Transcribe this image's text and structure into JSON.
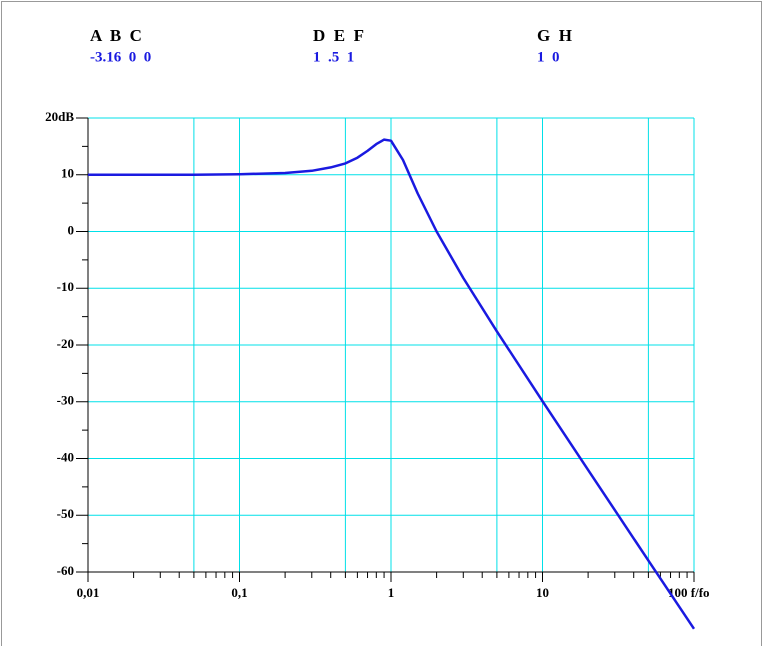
{
  "chart_data": {
    "type": "line",
    "parameters": [
      {
        "names": "A  B  C",
        "values": "-3.16  0  0"
      },
      {
        "names": "D  E  F",
        "values": "1  .5  1"
      },
      {
        "names": "G  H",
        "values": "1  0"
      }
    ],
    "x": [
      0.01,
      0.02,
      0.05,
      0.1,
      0.2,
      0.3,
      0.4,
      0.5,
      0.6,
      0.7,
      0.8,
      0.9,
      1,
      1.2,
      1.5,
      2,
      3,
      5,
      10,
      20,
      50,
      100
    ],
    "series": [
      {
        "color": "#1a1ae0",
        "values": [
          10.0,
          10.0,
          10.0,
          10.1,
          10.3,
          10.7,
          11.3,
          12.0,
          13.0,
          14.2,
          15.4,
          16.2,
          16.0,
          12.6,
          6.7,
          0.0,
          -8.2,
          -17.6,
          -29.9,
          -42.0,
          -58.0,
          -70.0
        ]
      }
    ],
    "xscale": "log",
    "xlim": [
      0.01,
      100
    ],
    "xticks": [
      {
        "value": 0.01,
        "label": "0,01"
      },
      {
        "value": 0.1,
        "label": "0,1"
      },
      1,
      10,
      {
        "value": 100,
        "label": "100 f/fo"
      }
    ],
    "xgrid": [
      0.01,
      0.05,
      0.1,
      0.5,
      1,
      5,
      10,
      50,
      100
    ],
    "ylim": [
      -60,
      20
    ],
    "yticks": [
      -60,
      -50,
      -40,
      -30,
      -20,
      -10,
      0,
      10,
      {
        "value": 20,
        "label": "20dB"
      }
    ],
    "grid_color": "#00e0e8"
  }
}
